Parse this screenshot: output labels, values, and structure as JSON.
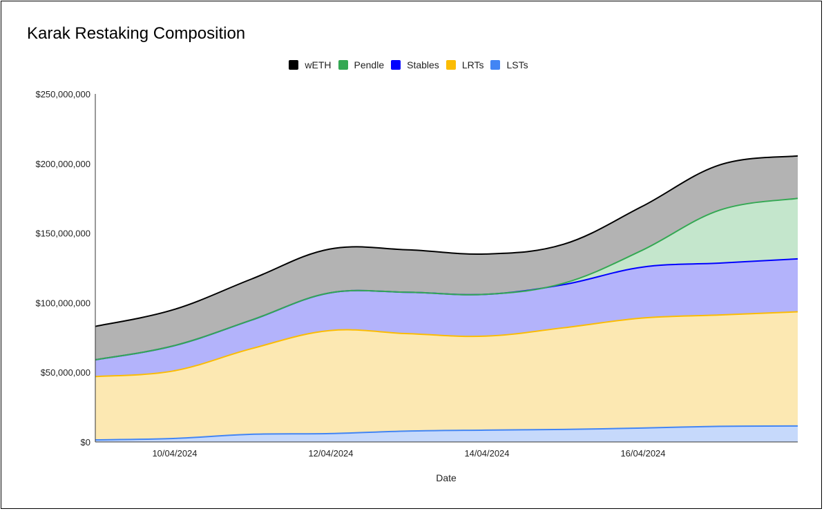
{
  "chart_data": {
    "type": "area",
    "stacked": true,
    "title": "Karak Restaking Composition",
    "xlabel": "Date",
    "ylabel": "",
    "ylim": [
      0,
      250000000
    ],
    "xlim": [
      "2024-04-09",
      "2024-04-18"
    ],
    "y_ticks": [
      "$0",
      "$50,000,000",
      "$100,000,000",
      "$150,000,000",
      "$200,000,000",
      "$250,000,000"
    ],
    "y_tick_values": [
      0,
      50000000,
      100000000,
      150000000,
      200000000,
      250000000
    ],
    "x_ticks": [
      "10/04/2024",
      "12/04/2024",
      "14/04/2024",
      "16/04/2024"
    ],
    "x_tick_dates": [
      "2024-04-10",
      "2024-04-12",
      "2024-04-14",
      "2024-04-16"
    ],
    "grid": false,
    "legend_position": "top-center",
    "x": [
      "2024-04-09",
      "2024-04-10",
      "2024-04-11",
      "2024-04-12",
      "2024-04-13",
      "2024-04-14",
      "2024-04-15",
      "2024-04-16",
      "2024-04-17",
      "2024-04-18"
    ],
    "series": [
      {
        "name": "LSTs",
        "color": "#4285f4",
        "fill": "#c6d9fb",
        "values": [
          1500000,
          2500000,
          5500000,
          6000000,
          7800000,
          8500000,
          9000000,
          10000000,
          11200000,
          11500000
        ]
      },
      {
        "name": "LRTs",
        "color": "#fbbc04",
        "fill": "#fce8b2",
        "values": [
          45500000,
          48500000,
          61500000,
          74000000,
          70000000,
          67500000,
          73000000,
          79000000,
          80000000,
          82000000
        ]
      },
      {
        "name": "Stables",
        "color": "#0000ff",
        "fill": "#b3b3fb",
        "values": [
          12000000,
          18000000,
          20500000,
          27000000,
          29700000,
          30000000,
          31000000,
          36500000,
          37300000,
          38000000
        ]
      },
      {
        "name": "Pendle",
        "color": "#34a853",
        "fill": "#c4e6cc",
        "values": [
          0,
          0,
          0,
          0,
          0,
          0,
          1000000,
          12000000,
          38000000,
          43500000
        ]
      },
      {
        "name": "wETH",
        "color": "#000000",
        "fill": "#b3b3b3",
        "values": [
          24000000,
          26000000,
          29500000,
          31500000,
          30500000,
          29000000,
          28000000,
          31500000,
          32500000,
          30500000
        ]
      }
    ]
  }
}
